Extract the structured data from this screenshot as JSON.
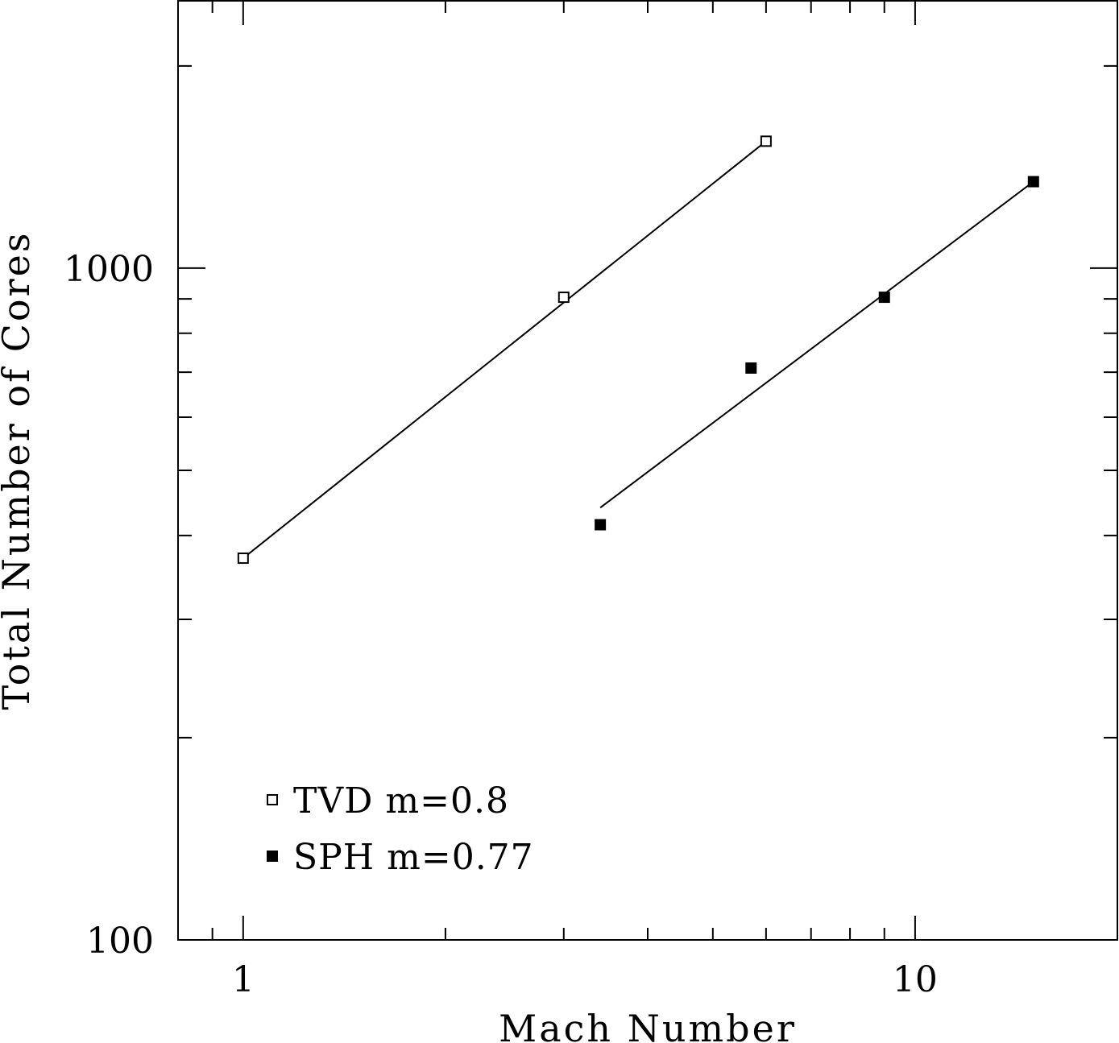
{
  "chart_data": {
    "type": "scatter",
    "xlabel": "Mach Number",
    "ylabel": "Total Number of Cores",
    "xscale": "log",
    "yscale": "log",
    "xlim": [
      0.8,
      20
    ],
    "ylim": [
      100,
      2500
    ],
    "x_tick_labels": [
      {
        "value": 1,
        "label": "1"
      },
      {
        "value": 10,
        "label": "10"
      }
    ],
    "y_tick_labels": [
      {
        "value": 100,
        "label": "100"
      },
      {
        "value": 1000,
        "label": "1000"
      }
    ],
    "grid": false,
    "legend_position": "bottom-left",
    "series": [
      {
        "name": "TVD m=0.8",
        "marker": "open-square",
        "points": [
          {
            "x": 1,
            "y": 370
          },
          {
            "x": 3,
            "y": 905
          },
          {
            "x": 6,
            "y": 1545
          }
        ],
        "fit_line": {
          "x": [
            1,
            6
          ],
          "y": [
            370,
            1545
          ]
        }
      },
      {
        "name": "SPH m=0.77",
        "marker": "filled-square",
        "points": [
          {
            "x": 3.4,
            "y": 415
          },
          {
            "x": 5.7,
            "y": 710
          },
          {
            "x": 9,
            "y": 905
          },
          {
            "x": 15,
            "y": 1345
          }
        ],
        "fit_line": {
          "x": [
            3.4,
            15
          ],
          "y": [
            440,
            1345
          ]
        }
      }
    ],
    "legend": [
      {
        "label": "TVD m=0.8",
        "marker": "open-square"
      },
      {
        "label": "SPH m=0.77",
        "marker": "filled-square"
      }
    ]
  }
}
